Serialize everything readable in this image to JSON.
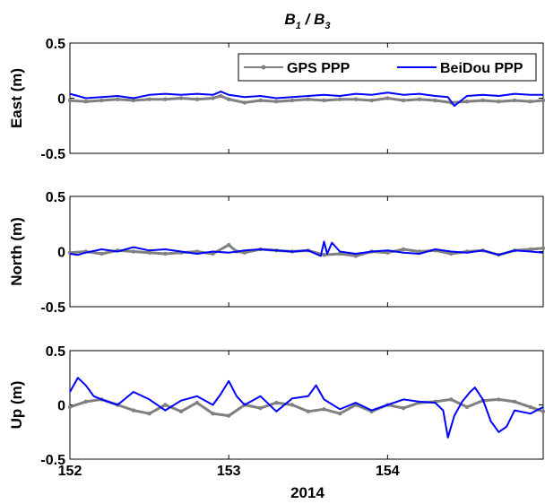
{
  "chart_data": {
    "type": "line",
    "title": {
      "main": "B",
      "sub1": "1",
      "sep": " / B",
      "sub2": "3"
    },
    "xlabel": "2014",
    "xlim": [
      152,
      154.98
    ],
    "xticks": [
      152,
      153,
      154
    ],
    "xtick_labels": [
      "152",
      "153",
      "154"
    ],
    "legend": {
      "placement": "top-right",
      "entries": [
        {
          "name": "GPS PPP",
          "color": "#808080",
          "marker": "dot"
        },
        {
          "name": "BeiDou PPP",
          "color": "#0000ff",
          "marker": "none"
        }
      ]
    },
    "colors": {
      "gps": "#808080",
      "beidou": "#0000ff"
    },
    "panels": [
      {
        "ylabel": "East (m)",
        "ylim": [
          -0.5,
          0.5
        ],
        "yticks": [
          0.5,
          0,
          -0.5
        ],
        "ytick_labels": [
          "0.5",
          "0",
          "-0.5"
        ],
        "series": [
          {
            "name": "GPS PPP",
            "x": [
              152,
              152.1,
              152.2,
              152.3,
              152.4,
              152.5,
              152.6,
              152.7,
              152.8,
              152.9,
              152.95,
              153.0,
              153.1,
              153.2,
              153.3,
              153.4,
              153.5,
              153.6,
              153.7,
              153.8,
              153.9,
              154.0,
              154.1,
              154.2,
              154.3,
              154.4,
              154.5,
              154.6,
              154.7,
              154.8,
              154.9,
              154.98
            ],
            "y": [
              -0.02,
              -0.03,
              -0.02,
              -0.01,
              -0.02,
              -0.01,
              -0.01,
              0.0,
              -0.01,
              0.0,
              0.02,
              -0.01,
              -0.04,
              -0.02,
              -0.03,
              -0.02,
              -0.01,
              -0.02,
              -0.01,
              -0.01,
              -0.02,
              0.0,
              -0.02,
              -0.01,
              -0.02,
              -0.04,
              -0.03,
              -0.02,
              -0.03,
              -0.02,
              -0.03,
              -0.02
            ]
          },
          {
            "name": "BeiDou PPP",
            "x": [
              152,
              152.05,
              152.1,
              152.2,
              152.3,
              152.4,
              152.5,
              152.6,
              152.7,
              152.8,
              152.9,
              152.95,
              153.0,
              153.1,
              153.2,
              153.3,
              153.4,
              153.5,
              153.6,
              153.7,
              153.8,
              153.9,
              154.0,
              154.1,
              154.2,
              154.3,
              154.38,
              154.42,
              154.5,
              154.6,
              154.7,
              154.8,
              154.9,
              154.98
            ],
            "y": [
              0.04,
              0.02,
              0.0,
              0.01,
              0.02,
              0.0,
              0.03,
              0.04,
              0.03,
              0.04,
              0.03,
              0.06,
              0.03,
              0.01,
              0.02,
              0.0,
              0.01,
              0.02,
              0.03,
              0.02,
              0.04,
              0.03,
              0.05,
              0.03,
              0.04,
              0.02,
              0.01,
              -0.07,
              0.02,
              0.03,
              0.02,
              0.04,
              0.03,
              0.03
            ]
          }
        ]
      },
      {
        "ylabel": "North (m)",
        "ylim": [
          -0.5,
          0.5
        ],
        "yticks": [
          0.5,
          0,
          -0.5
        ],
        "ytick_labels": [
          "0.5",
          "0",
          "-0.5"
        ],
        "series": [
          {
            "name": "GPS PPP",
            "x": [
              152,
              152.1,
              152.2,
              152.3,
              152.4,
              152.5,
              152.6,
              152.7,
              152.8,
              152.9,
              153.0,
              153.05,
              153.1,
              153.2,
              153.3,
              153.4,
              153.5,
              153.6,
              153.7,
              153.8,
              153.9,
              154.0,
              154.1,
              154.2,
              154.3,
              154.4,
              154.5,
              154.6,
              154.7,
              154.8,
              154.9,
              154.98
            ],
            "y": [
              -0.01,
              0.0,
              -0.02,
              0.01,
              0.0,
              -0.01,
              -0.02,
              -0.01,
              0.0,
              -0.02,
              0.06,
              0.0,
              -0.01,
              0.02,
              0.01,
              0.0,
              0.01,
              -0.03,
              -0.02,
              -0.04,
              0.0,
              -0.01,
              0.02,
              0.0,
              0.01,
              -0.02,
              0.0,
              0.01,
              -0.03,
              0.01,
              0.02,
              0.03
            ]
          },
          {
            "name": "BeiDou PPP",
            "x": [
              152,
              152.05,
              152.1,
              152.2,
              152.3,
              152.4,
              152.5,
              152.6,
              152.7,
              152.8,
              152.9,
              153.0,
              153.1,
              153.2,
              153.3,
              153.4,
              153.5,
              153.58,
              153.6,
              153.62,
              153.65,
              153.7,
              153.8,
              153.9,
              154.0,
              154.1,
              154.2,
              154.3,
              154.4,
              154.5,
              154.6,
              154.7,
              154.8,
              154.9,
              154.98
            ],
            "y": [
              -0.02,
              -0.03,
              -0.01,
              0.02,
              0.0,
              0.04,
              0.01,
              0.02,
              0.0,
              -0.02,
              0.0,
              -0.01,
              0.01,
              0.02,
              0.01,
              0.0,
              0.01,
              -0.04,
              0.09,
              -0.02,
              0.08,
              0.0,
              -0.02,
              0.0,
              0.01,
              -0.01,
              -0.02,
              0.02,
              0.0,
              -0.01,
              0.01,
              -0.03,
              0.01,
              0.0,
              -0.01
            ]
          }
        ]
      },
      {
        "ylabel": "Up (m)",
        "ylim": [
          -0.5,
          0.5
        ],
        "yticks": [
          0.5,
          0,
          -0.5
        ],
        "ytick_labels": [
          "0.5",
          "0",
          "-0.5"
        ],
        "series": [
          {
            "name": "GPS PPP",
            "x": [
              152,
              152.1,
              152.2,
              152.3,
              152.4,
              152.5,
              152.6,
              152.7,
              152.8,
              152.9,
              153.0,
              153.1,
              153.2,
              153.3,
              153.4,
              153.5,
              153.6,
              153.7,
              153.8,
              153.9,
              154.0,
              154.1,
              154.2,
              154.3,
              154.4,
              154.5,
              154.6,
              154.7,
              154.8,
              154.9,
              154.98
            ],
            "y": [
              -0.02,
              0.03,
              0.05,
              0.0,
              -0.05,
              -0.08,
              0.0,
              -0.06,
              0.02,
              -0.08,
              -0.1,
              0.0,
              -0.03,
              0.02,
              0.0,
              -0.06,
              -0.04,
              -0.08,
              0.0,
              -0.06,
              0.0,
              -0.03,
              0.02,
              0.03,
              0.05,
              -0.02,
              0.04,
              0.05,
              0.03,
              -0.02,
              -0.06
            ]
          },
          {
            "name": "BeiDou PPP",
            "x": [
              152,
              152.05,
              152.1,
              152.15,
              152.2,
              152.3,
              152.4,
              152.5,
              152.6,
              152.7,
              152.8,
              152.9,
              152.95,
              153.0,
              153.05,
              153.1,
              153.2,
              153.3,
              153.4,
              153.5,
              153.55,
              153.6,
              153.7,
              153.8,
              153.9,
              154.0,
              154.1,
              154.2,
              154.3,
              154.35,
              154.38,
              154.42,
              154.47,
              154.52,
              154.55,
              154.6,
              154.65,
              154.7,
              154.75,
              154.8,
              154.9,
              154.98
            ],
            "y": [
              0.12,
              0.25,
              0.18,
              0.08,
              0.05,
              0.0,
              0.12,
              0.05,
              -0.05,
              0.04,
              0.08,
              0.0,
              0.1,
              0.22,
              0.08,
              0.0,
              0.08,
              -0.06,
              0.06,
              0.08,
              0.18,
              0.05,
              -0.04,
              0.02,
              -0.05,
              0.0,
              0.05,
              0.03,
              0.02,
              -0.05,
              -0.3,
              -0.1,
              0.03,
              0.12,
              0.16,
              0.05,
              -0.15,
              -0.25,
              -0.2,
              -0.05,
              -0.08,
              -0.02
            ]
          }
        ]
      }
    ]
  }
}
